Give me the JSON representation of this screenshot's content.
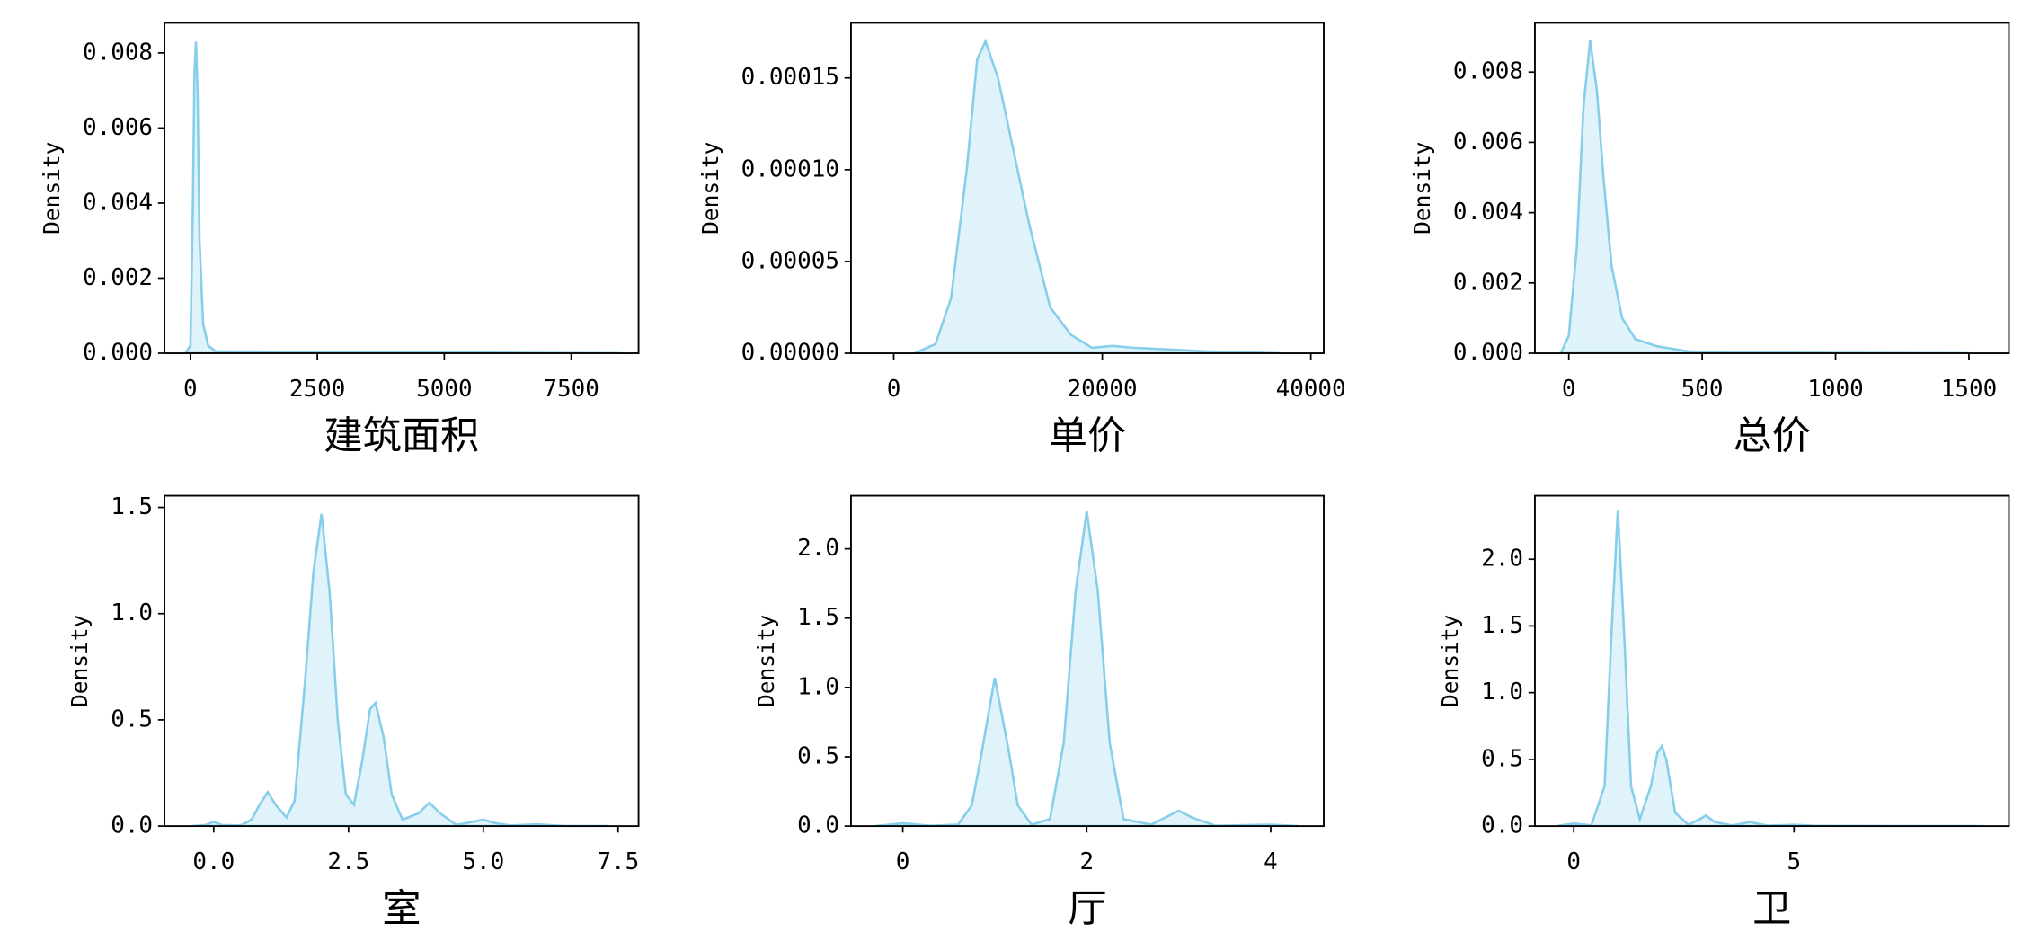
{
  "chart_data": {
    "charts": [
      {
        "type": "area",
        "xlabel": "建筑面积",
        "ylabel": "Density",
        "color": "#87ceeb",
        "x": [
          -100,
          0,
          50,
          80,
          110,
          140,
          180,
          250,
          350,
          500,
          8500
        ],
        "values": [
          0,
          0.0002,
          0.004,
          0.0075,
          0.0083,
          0.007,
          0.003,
          0.0008,
          0.0002,
          5e-05,
          0
        ],
        "xlim": [
          -510,
          8827
        ],
        "ylim": [
          0,
          0.0088
        ],
        "xticks": [
          0,
          2500,
          5000,
          7500
        ],
        "yticks": [
          {
            "value": 0,
            "label": "0.000"
          },
          {
            "value": 0.002,
            "label": "0.002"
          },
          {
            "value": 0.004,
            "label": "0.004"
          },
          {
            "value": 0.006,
            "label": "0.006"
          },
          {
            "value": 0.008,
            "label": "0.008"
          }
        ]
      },
      {
        "type": "area",
        "xlabel": "单价",
        "ylabel": "Density",
        "color": "#87ceeb",
        "x": [
          2000,
          4000,
          5500,
          7000,
          8000,
          8800,
          10000,
          11500,
          13000,
          15000,
          17000,
          19000,
          21000,
          23000,
          30000,
          37000
        ],
        "values": [
          0,
          5e-06,
          3e-05,
          0.0001,
          0.00016,
          0.00017,
          0.00015,
          0.00011,
          7e-05,
          2.5e-05,
          1e-05,
          3e-06,
          4e-06,
          3e-06,
          1e-06,
          0
        ],
        "xlim": [
          -4099,
          41242
        ],
        "ylim": [
          0,
          0.00018
        ],
        "xticks": [
          0,
          20000,
          40000
        ],
        "yticks": [
          {
            "value": 0,
            "label": "0.00000"
          },
          5e-05,
          {
            "value": 0.0001,
            "label": "0.00010"
          },
          0.00015
        ]
      },
      {
        "type": "area",
        "xlabel": "总价",
        "ylabel": "Density",
        "color": "#87ceeb",
        "x": [
          -30,
          0,
          30,
          55,
          80,
          105,
          130,
          160,
          200,
          250,
          330,
          450,
          600,
          1500
        ],
        "values": [
          0,
          0.0005,
          0.003,
          0.007,
          0.0089,
          0.0075,
          0.005,
          0.0025,
          0.001,
          0.0004,
          0.0002,
          5e-05,
          2e-05,
          0
        ],
        "xlim": [
          -127,
          1650
        ],
        "ylim": [
          0,
          0.0094
        ],
        "xticks": [
          0,
          500,
          1000,
          1500
        ],
        "yticks": [
          {
            "value": 0,
            "label": "0.000"
          },
          {
            "value": 0.002,
            "label": "0.002"
          },
          {
            "value": 0.004,
            "label": "0.004"
          },
          {
            "value": 0.006,
            "label": "0.006"
          },
          {
            "value": 0.008,
            "label": "0.008"
          }
        ]
      },
      {
        "type": "area",
        "xlabel": "室",
        "ylabel": "Density",
        "color": "#87ceeb",
        "x": [
          -0.4,
          -0.15,
          0,
          0.15,
          0.5,
          0.7,
          0.85,
          1.0,
          1.15,
          1.35,
          1.5,
          1.7,
          1.85,
          2.0,
          2.15,
          2.3,
          2.45,
          2.6,
          2.75,
          2.9,
          3.0,
          3.15,
          3.3,
          3.5,
          3.8,
          4.0,
          4.2,
          4.5,
          4.8,
          5.0,
          5.2,
          5.5,
          6.0,
          6.5,
          7.3
        ],
        "values": [
          0,
          0.005,
          0.02,
          0.005,
          0.003,
          0.03,
          0.1,
          0.16,
          0.1,
          0.04,
          0.12,
          0.7,
          1.2,
          1.47,
          1.1,
          0.5,
          0.15,
          0.1,
          0.3,
          0.55,
          0.58,
          0.42,
          0.15,
          0.03,
          0.06,
          0.11,
          0.06,
          0.005,
          0.02,
          0.03,
          0.015,
          0.003,
          0.008,
          0.001,
          0
        ],
        "xlim": [
          -0.913,
          7.88
        ],
        "ylim": [
          0,
          1.555
        ],
        "xticks": [
          {
            "value": 0,
            "label": "0.0"
          },
          2.5,
          {
            "value": 5,
            "label": "5.0"
          },
          7.5
        ],
        "yticks": [
          {
            "value": 0,
            "label": "0.0"
          },
          0.5,
          {
            "value": 1,
            "label": "1.0"
          },
          1.5
        ]
      },
      {
        "type": "area",
        "xlabel": "厅",
        "ylabel": "Density",
        "color": "#87ceeb",
        "x": [
          -0.3,
          0,
          0.3,
          0.6,
          0.75,
          0.85,
          1.0,
          1.15,
          1.25,
          1.4,
          1.6,
          1.75,
          1.88,
          2.0,
          2.12,
          2.25,
          2.4,
          2.7,
          2.85,
          3.0,
          3.15,
          3.4,
          4.0,
          4.3
        ],
        "values": [
          0,
          0.02,
          0.003,
          0.01,
          0.15,
          0.5,
          1.07,
          0.55,
          0.15,
          0.01,
          0.05,
          0.6,
          1.7,
          2.27,
          1.7,
          0.6,
          0.05,
          0.01,
          0.06,
          0.11,
          0.06,
          0.003,
          0.01,
          0
        ],
        "xlim": [
          -0.563,
          4.577
        ],
        "ylim": [
          0,
          2.383
        ],
        "xticks": [
          0,
          2,
          4
        ],
        "yticks": [
          {
            "value": 0,
            "label": "0.0"
          },
          0.5,
          {
            "value": 1,
            "label": "1.0"
          },
          1.5,
          {
            "value": 2,
            "label": "2.0"
          }
        ]
      },
      {
        "type": "area",
        "xlabel": "卫",
        "ylabel": "Density",
        "color": "#87ceeb",
        "x": [
          -0.4,
          0,
          0.4,
          0.7,
          0.85,
          1.0,
          1.15,
          1.3,
          1.5,
          1.75,
          1.9,
          2.0,
          2.1,
          2.3,
          2.6,
          2.85,
          3.0,
          3.2,
          3.6,
          4.0,
          4.4,
          5.0,
          5.5,
          7,
          9.3
        ],
        "values": [
          0,
          0.02,
          0.005,
          0.3,
          1.4,
          2.37,
          1.4,
          0.3,
          0.05,
          0.3,
          0.55,
          0.6,
          0.5,
          0.1,
          0.01,
          0.05,
          0.08,
          0.03,
          0.005,
          0.03,
          0.003,
          0.01,
          0.002,
          0.001,
          0
        ],
        "xlim": [
          -0.882,
          9.88
        ],
        "ylim": [
          0,
          2.476
        ],
        "xticks": [
          0,
          5
        ],
        "yticks": [
          {
            "value": 0,
            "label": "0.0"
          },
          0.5,
          {
            "value": 1,
            "label": "1.0"
          },
          1.5,
          {
            "value": 2,
            "label": "2.0"
          }
        ]
      }
    ]
  }
}
